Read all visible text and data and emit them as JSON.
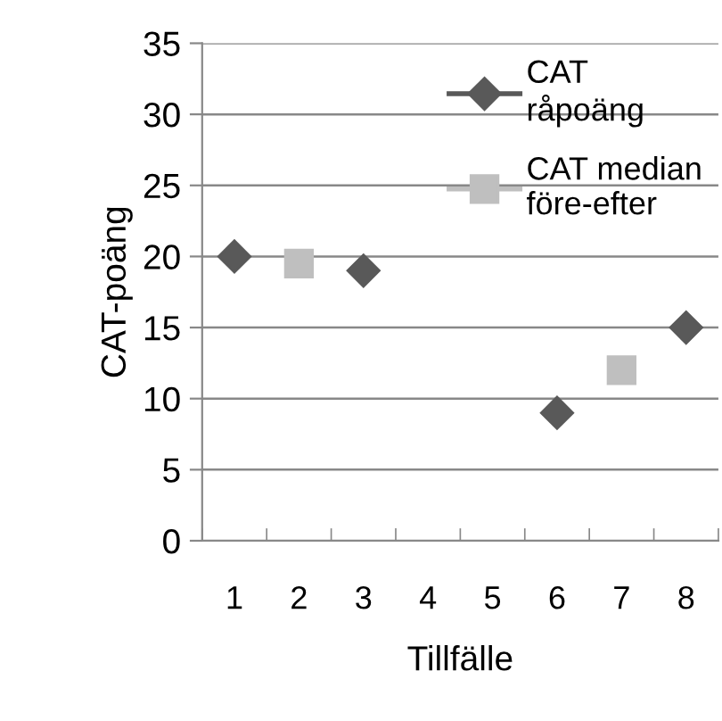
{
  "chart_data": {
    "type": "line",
    "xlabel": "Tillfälle",
    "ylabel": "CAT-poäng",
    "categories": [
      "1",
      "2",
      "3",
      "4",
      "5",
      "6",
      "7",
      "8"
    ],
    "series": [
      {
        "name": "CAT\nråpoäng",
        "color": "#595959",
        "marker": "diamond",
        "values": [
          20,
          null,
          19,
          null,
          null,
          9,
          null,
          15
        ]
      },
      {
        "name": "CAT median\nföre-efter",
        "color": "#bfbfbf",
        "marker": "square",
        "values": [
          null,
          19.5,
          null,
          null,
          null,
          null,
          12,
          null
        ]
      }
    ],
    "ylim": [
      0,
      35
    ],
    "yticks": [
      0,
      5,
      10,
      15,
      20,
      25,
      30,
      35
    ],
    "grid": "y",
    "legend": "top right"
  }
}
